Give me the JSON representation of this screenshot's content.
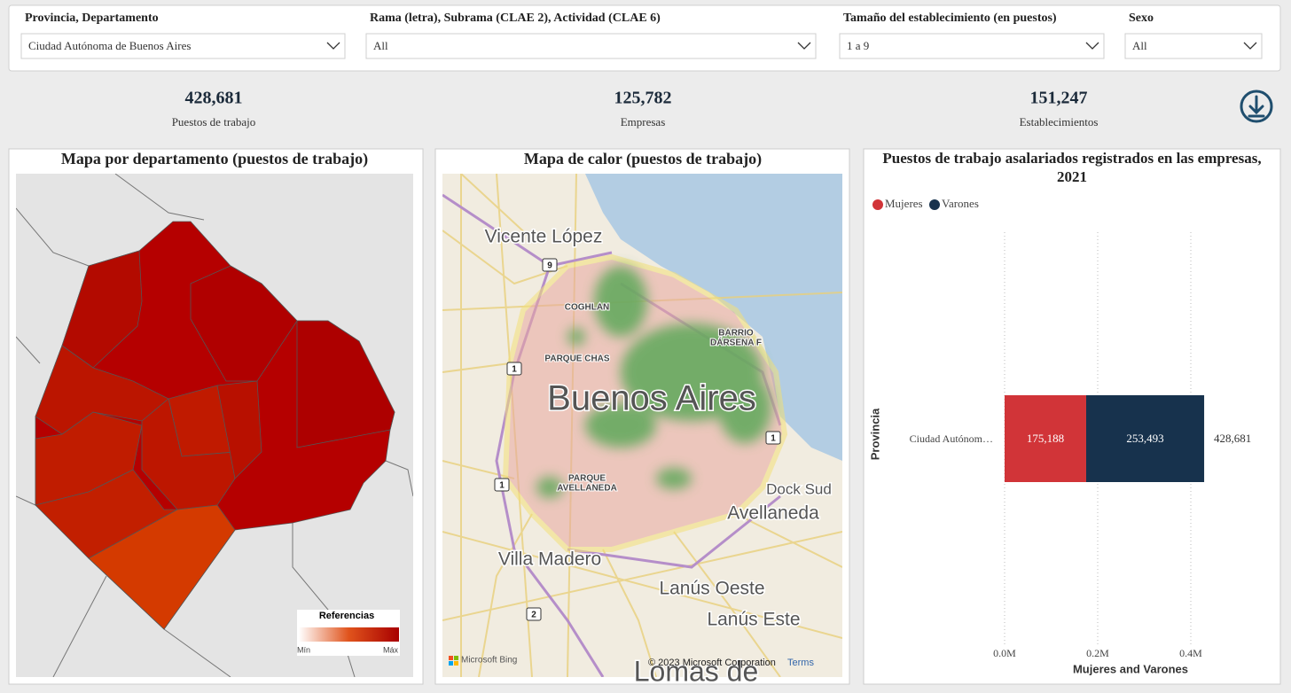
{
  "filters": [
    {
      "label": "Provincia, Departamento",
      "value": "Ciudad Autónoma de Buenos Aires"
    },
    {
      "label": "Rama (letra), Subrama (CLAE 2), Actividad (CLAE 6)",
      "value": "All"
    },
    {
      "label": "Tamaño del establecimiento (en puestos)",
      "value": "1 a 9"
    },
    {
      "label": "Sexo",
      "value": "All"
    }
  ],
  "kpis": [
    {
      "value": "428,681",
      "label": "Puestos de trabajo"
    },
    {
      "value": "125,782",
      "label": "Empresas"
    },
    {
      "value": "151,247",
      "label": "Establecimientos"
    }
  ],
  "department_map": {
    "title": "Mapa por departamento (puestos de trabajo)",
    "legend_title": "Referencias",
    "legend_min": "Mín",
    "legend_max": "Máx"
  },
  "heat_map": {
    "title": "Mapa de calor (puestos de trabajo)",
    "places": [
      "Vicente López",
      "COGHLAN",
      "BARRIO",
      "DÁRSENA F",
      "PARQUE CHAS",
      "Buenos Aires",
      "PARQUE",
      "AVELLANEDA",
      "Dock Sud",
      "Avellaneda",
      "Villa Madero",
      "Lanús Oeste",
      "Lanús Este",
      "Lomas de"
    ],
    "route_shields": [
      "9",
      "1",
      "1",
      "1",
      "2"
    ],
    "attribution": "Microsoft Bing",
    "copyright": "© 2023 Microsoft Corporation",
    "terms": "Terms"
  },
  "chart_data": {
    "type": "bar",
    "orientation": "horizontal",
    "stacked": true,
    "title": "Puestos de trabajo asalariados registrados en las empresas, 2021",
    "y_label": "Provincia",
    "x_label": "Mujeres and Varones",
    "categories": [
      "Ciudad Autónom…"
    ],
    "series": [
      {
        "name": "Mujeres",
        "color": "#d13438",
        "values": [
          175188
        ],
        "value_labels": [
          "175,188"
        ]
      },
      {
        "name": "Varones",
        "color": "#17324d",
        "values": [
          253493
        ],
        "value_labels": [
          "253,493"
        ]
      }
    ],
    "totals": [
      428681
    ],
    "total_labels": [
      "428,681"
    ],
    "xlim": [
      0,
      580000
    ],
    "xticks": [
      {
        "value": 0,
        "label": "0.0M"
      },
      {
        "value": 200000,
        "label": "0.2M"
      },
      {
        "value": 400000,
        "label": "0.4M"
      }
    ],
    "grid": true,
    "legend": "top-left"
  }
}
